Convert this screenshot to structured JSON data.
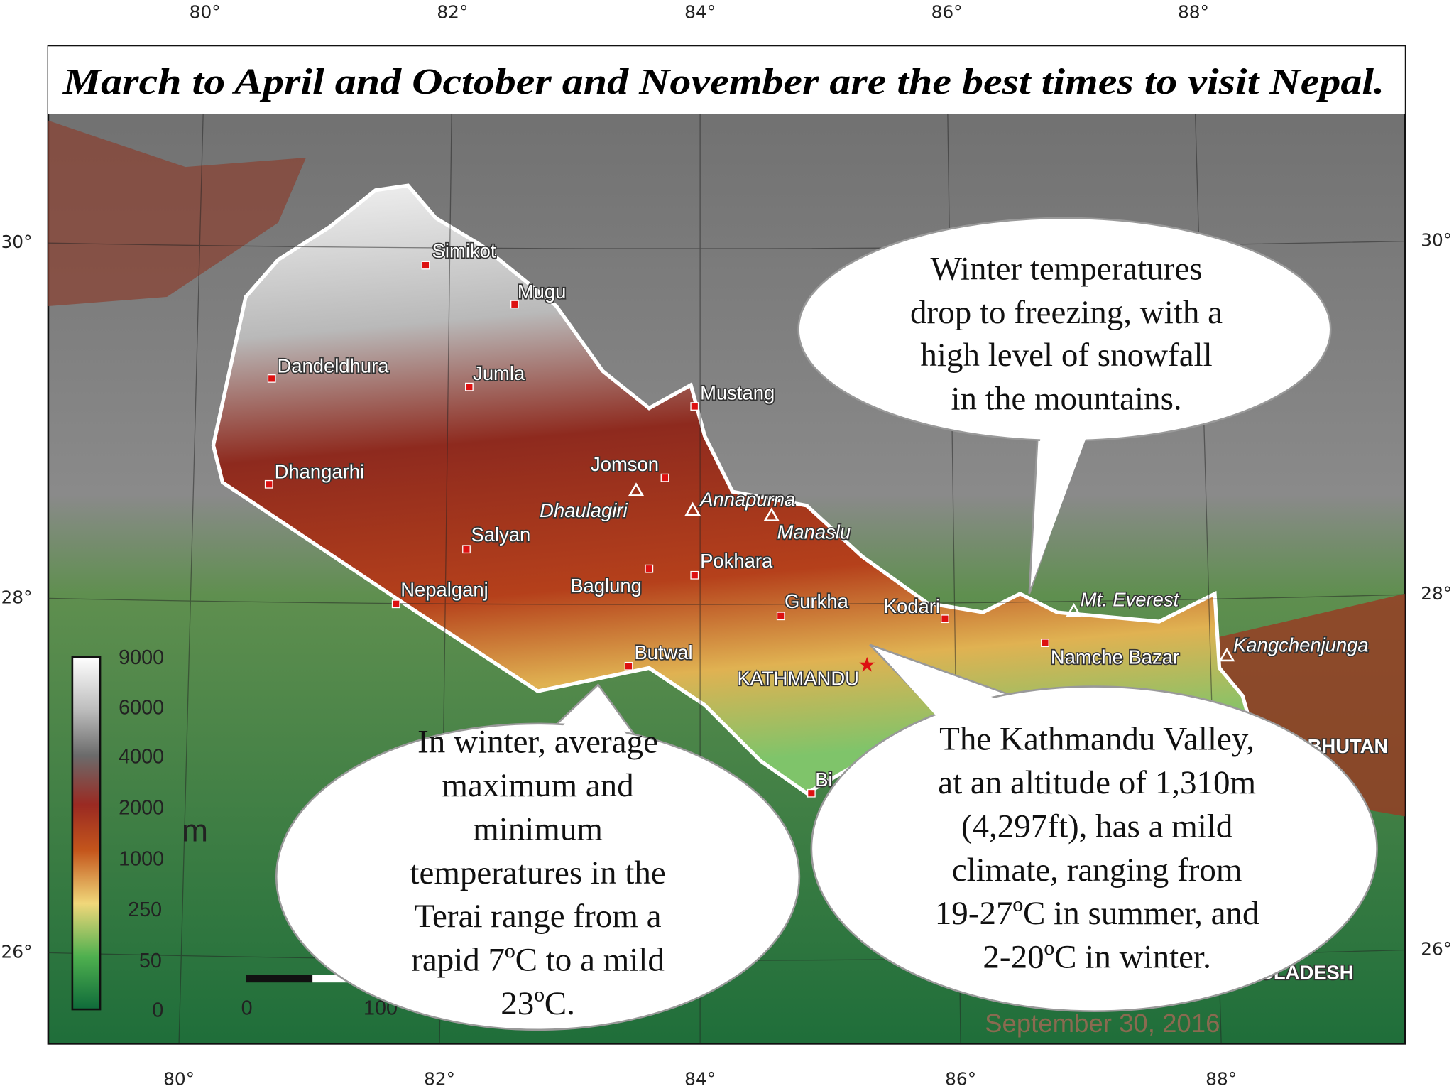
{
  "header": {
    "title": "March to April and October and November are the best times to visit Nepal."
  },
  "axes": {
    "top": [
      "80°",
      "82°",
      "84°",
      "86°",
      "88°"
    ],
    "bottom": [
      "80°",
      "82°",
      "84°",
      "86°",
      "88°"
    ],
    "left": [
      "30°",
      "28°",
      "26°"
    ],
    "right": [
      "30°",
      "28°",
      "26°"
    ]
  },
  "places": [
    "Simikot",
    "Mugu",
    "Dandeldhura",
    "Jumla",
    "Mustang",
    "Dhangarhi",
    "Jomson",
    "Salyan",
    "Nepalganj",
    "Baglung",
    "Pokhara",
    "Gurkha",
    "Kodari",
    "Butwal",
    "KATHMANDU",
    "Namche Bazar",
    "Bi"
  ],
  "peaks": [
    "Dhaulagiri",
    "Annapurna",
    "Manaslu",
    "Mt. Everest",
    "Kangchenjunga"
  ],
  "countries": [
    "BHUTAN",
    "NGLADESH"
  ],
  "legend": {
    "labels": [
      "9000",
      "6000",
      "4000",
      "2000",
      "1000",
      "250",
      "50",
      "0"
    ],
    "unit": "m"
  },
  "scale": [
    "0",
    "100"
  ],
  "date": "September 30, 2016",
  "callouts": [
    {
      "lines": [
        "Winter temperatures",
        "drop to freezing, with a",
        "high level of snowfall",
        "in the mountains."
      ]
    },
    {
      "lines": [
        "In winter, average",
        "maximum and",
        "minimum",
        "temperatures in the",
        "Terai range from a",
        "rapid 7ºC to a mild",
        "23ºC."
      ]
    },
    {
      "lines": [
        "The Kathmandu Valley,",
        "at an altitude of 1,310m",
        "(4,297ft), has a mild",
        "climate, ranging from",
        "19-27ºC in summer, and",
        "2-20ºC in winter."
      ]
    }
  ]
}
